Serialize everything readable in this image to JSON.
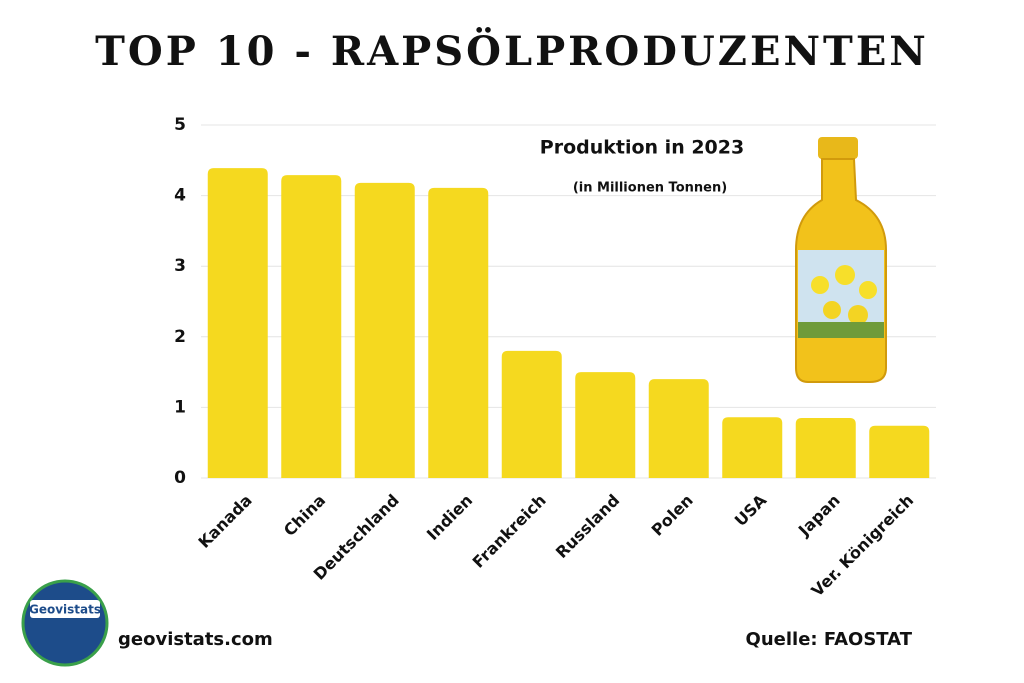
{
  "chart_data": {
    "type": "bar",
    "title": "TOP 10 - RAPSÖLPRODUZENTEN",
    "annotations": [
      "Produktion in 2023",
      "(in Millionen Tonnen)"
    ],
    "categories": [
      "Kanada",
      "China",
      "Deutschland",
      "Indien",
      "Frankreich",
      "Russland",
      "Polen",
      "USA",
      "Japan",
      "Ver. Königreich"
    ],
    "values": [
      4.39,
      4.29,
      4.18,
      4.11,
      1.8,
      1.5,
      1.4,
      0.86,
      0.85,
      0.74
    ],
    "color": "#f5d91f",
    "ylim": [
      0,
      5
    ],
    "yticks": [
      0,
      1,
      2,
      3,
      4,
      5
    ],
    "grid": true,
    "logo_text": "Geovistats",
    "website": "geovistats.com",
    "source": "Quelle: FAOSTAT"
  }
}
